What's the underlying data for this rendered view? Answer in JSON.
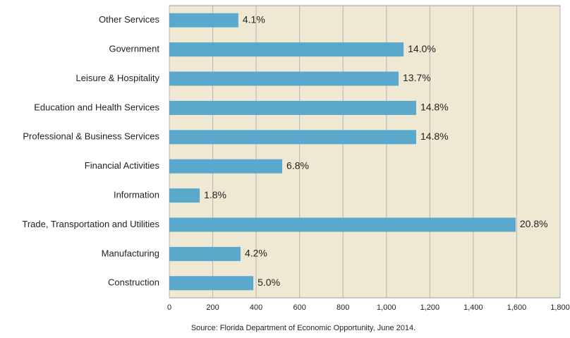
{
  "chart_data": {
    "type": "bar",
    "orientation": "horizontal",
    "categories": [
      "Other Services",
      "Government",
      "Leisure & Hospitality",
      "Education and Health Services",
      "Professional & Business Services",
      "Financial Activities",
      "Information",
      "Trade, Transportation and Utilities",
      "Manufacturing",
      "Construction"
    ],
    "values": [
      318,
      1079,
      1056,
      1137,
      1137,
      520,
      140,
      1595,
      328,
      387
    ],
    "percent_labels": [
      "4.1%",
      "14.0%",
      "13.7%",
      "14.8%",
      "14.8%",
      "6.8%",
      "1.8%",
      "20.8%",
      "4.2%",
      "5.0%"
    ],
    "color": "#5aa8cb",
    "xlim": [
      0,
      1800
    ],
    "xticks": [
      0,
      200,
      400,
      600,
      800,
      {
        "value": 1000,
        "label": "1,000"
      },
      {
        "value": 1200,
        "label": "1,200"
      },
      {
        "value": 1400,
        "label": "1,400"
      },
      {
        "value": 1600,
        "label": "1,600"
      },
      {
        "value": 1800,
        "label": "1,800"
      }
    ],
    "grid": true,
    "source": "Source:  Florida Department of Economic Opportunity, June 2014."
  }
}
